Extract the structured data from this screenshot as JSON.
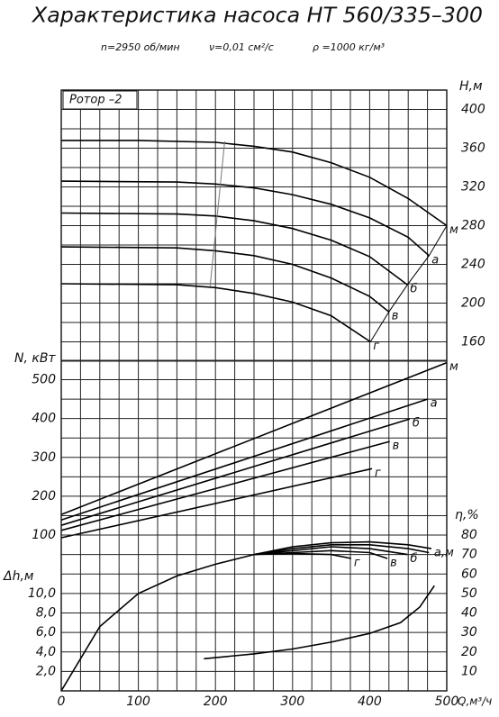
{
  "header": {
    "title": "Характеристика насоса НТ 560/335–300",
    "subtitle": [
      "n=2950 об/мин",
      "ν=0,01 см²/с",
      "ρ =1000 кг/м³"
    ],
    "rotor": "Ротор –2"
  },
  "chart_data": [
    {
      "type": "line",
      "ylabel": "Н,м",
      "y_side": "right",
      "xlim": [
        0,
        500
      ],
      "ylim": [
        140,
        420
      ],
      "yticks": [
        160,
        200,
        240,
        280,
        320,
        360,
        400
      ],
      "xgrid_step": 25,
      "ygrid_step": 20,
      "color": "#000000",
      "end_line": true,
      "zone_line": {
        "x": [
          212,
          193
        ],
        "values": [
          367,
          217
        ],
        "color": "#777777"
      },
      "series": [
        {
          "name": "м",
          "x": [
            0,
            100,
            200,
            250,
            300,
            350,
            400,
            450,
            500
          ],
          "values": [
            368,
            368,
            366,
            362,
            356,
            345,
            330,
            308,
            280
          ]
        },
        {
          "name": "а",
          "x": [
            0,
            150,
            200,
            250,
            300,
            350,
            400,
            450,
            477
          ],
          "values": [
            326,
            325,
            323,
            319,
            312,
            302,
            288,
            268,
            249
          ]
        },
        {
          "name": "б",
          "x": [
            0,
            150,
            200,
            250,
            300,
            350,
            400,
            449
          ],
          "values": [
            293,
            292,
            290,
            285,
            277,
            265,
            248,
            219
          ]
        },
        {
          "name": "в",
          "x": [
            0,
            150,
            200,
            250,
            300,
            350,
            400,
            425
          ],
          "values": [
            258,
            257,
            254,
            249,
            240,
            226,
            207,
            191
          ]
        },
        {
          "name": "г",
          "x": [
            0,
            150,
            200,
            250,
            300,
            350,
            401
          ],
          "values": [
            220,
            219,
            216,
            210,
            201,
            187,
            160
          ]
        }
      ]
    },
    {
      "type": "line",
      "ylabel": "N, кВт",
      "y_side": "left",
      "xlim": [
        0,
        500
      ],
      "ylim": [
        100,
        550
      ],
      "yticks": [
        100,
        200,
        300,
        400,
        500
      ],
      "xgrid_step": 25,
      "ygrid_step": 50,
      "color": "#000000",
      "series": [
        {
          "name": "м",
          "x": [
            0,
            500
          ],
          "values": [
            153,
            544
          ]
        },
        {
          "name": "а",
          "x": [
            0,
            475
          ],
          "values": [
            139,
            450
          ]
        },
        {
          "name": "б",
          "x": [
            0,
            452
          ],
          "values": [
            125,
            399
          ]
        },
        {
          "name": "в",
          "x": [
            0,
            426
          ],
          "values": [
            112,
            341
          ]
        },
        {
          "name": "г",
          "x": [
            0,
            403
          ],
          "values": [
            93,
            271
          ]
        }
      ]
    },
    {
      "type": "line",
      "ylabel": "Δh,м",
      "y_side": "left",
      "y2label": "η,%",
      "xlabel": "Q,м³/ч",
      "xlim": [
        0,
        500
      ],
      "ylim": [
        0,
        16
      ],
      "y2lim": [
        0,
        80
      ],
      "xticks": [
        0,
        100,
        200,
        300,
        400,
        500
      ],
      "yticks": [
        {
          "value": 2,
          "label": "2,0"
        },
        {
          "value": 4,
          "label": "4,0"
        },
        {
          "value": 6,
          "label": "6,0"
        },
        {
          "value": 8,
          "label": "8,0"
        },
        {
          "value": 10,
          "label": "10,0"
        }
      ],
      "y2ticks": [
        10,
        20,
        30,
        40,
        50,
        60,
        70,
        80
      ],
      "xgrid_step": 25,
      "y2grid_step": 10,
      "color": "#000000",
      "series": [
        {
          "name": "а,м",
          "axis": "y2",
          "x": [
            0,
            50,
            100,
            150,
            200,
            250,
            300,
            350,
            400,
            450,
            480
          ],
          "values": [
            0,
            33,
            50,
            59,
            65,
            70,
            74,
            76,
            76.5,
            75,
            73
          ]
        },
        {
          "axis": "y2",
          "x": [
            250,
            300,
            350,
            400,
            450,
            477
          ],
          "values": [
            70,
            73,
            75,
            75,
            73,
            71
          ]
        },
        {
          "name": "б",
          "axis": "y2",
          "x": [
            250,
            300,
            350,
            400,
            449
          ],
          "values": [
            70,
            72,
            74,
            73,
            70
          ]
        },
        {
          "name": "в",
          "axis": "y2",
          "x": [
            250,
            300,
            350,
            400,
            423
          ],
          "values": [
            70,
            71,
            72,
            71,
            68
          ]
        },
        {
          "name": "г",
          "axis": "y2",
          "x": [
            250,
            300,
            350,
            376
          ],
          "values": [
            70,
            70.5,
            70,
            68
          ]
        },
        {
          "axis": "y",
          "x": [
            185,
            250,
            300,
            350,
            400,
            440,
            465,
            484
          ],
          "values": [
            3.3,
            3.8,
            4.3,
            5.0,
            5.9,
            7.0,
            8.6,
            10.8
          ]
        }
      ]
    }
  ]
}
